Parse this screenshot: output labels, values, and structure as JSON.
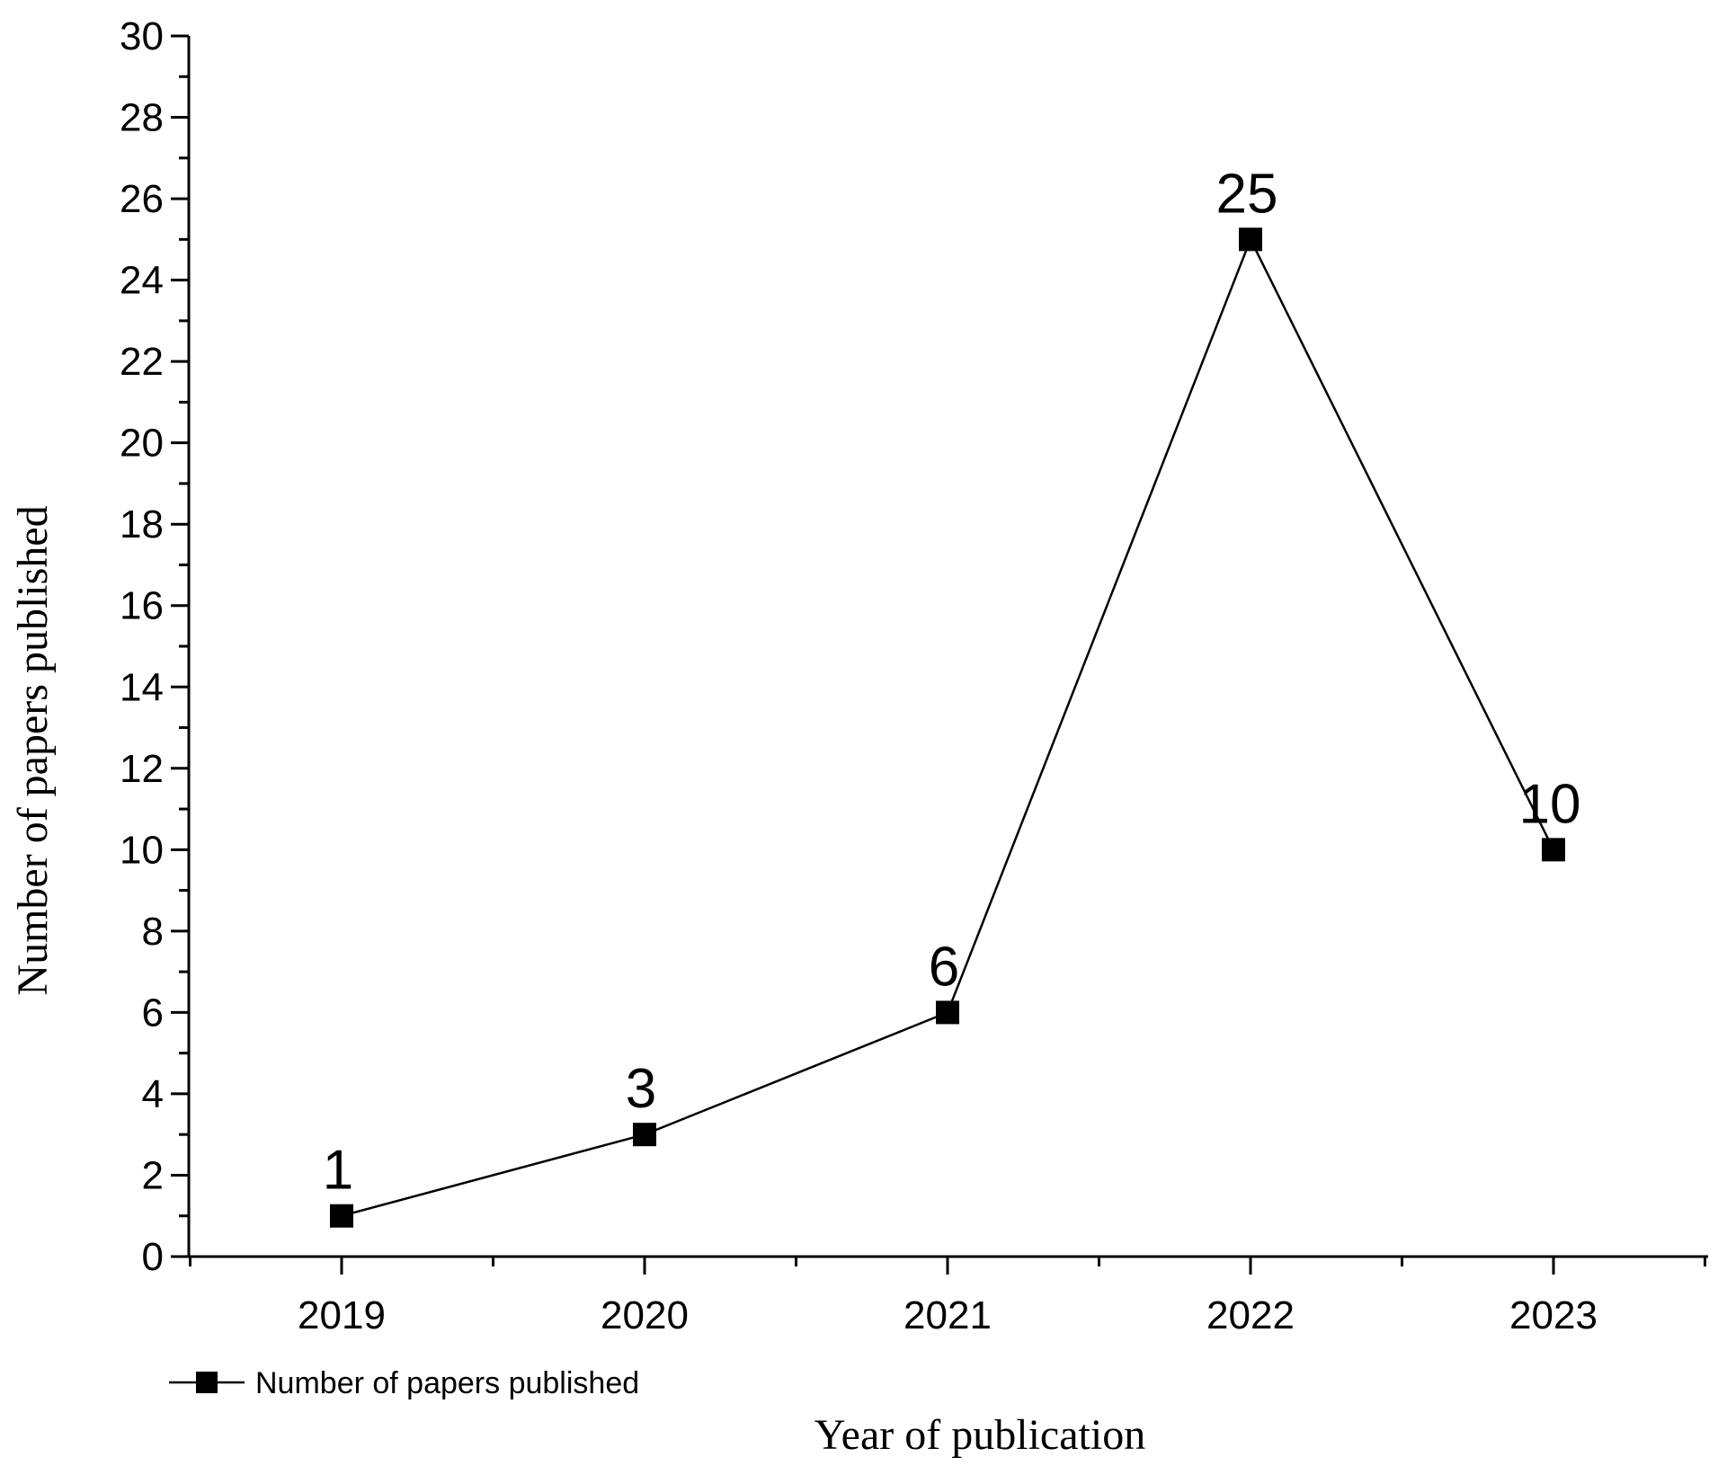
{
  "chart_data": {
    "type": "line",
    "title": "",
    "xlabel": "Year of publication",
    "ylabel": "Number of papers published",
    "categories": [
      "2019",
      "2020",
      "2021",
      "2022",
      "2023"
    ],
    "series": [
      {
        "name": "Number of papers published",
        "values": [
          1,
          3,
          6,
          25,
          10
        ]
      }
    ],
    "data_labels": [
      "1",
      "3",
      "6",
      "25",
      "10"
    ],
    "ylim": [
      0,
      30
    ],
    "y_ticks": [
      0,
      2,
      4,
      6,
      8,
      10,
      12,
      14,
      16,
      18,
      20,
      22,
      24,
      26,
      28,
      30
    ],
    "y_tick_labels": [
      "0",
      "2",
      "4",
      "6",
      "8",
      "10",
      "12",
      "14",
      "16",
      "18",
      "20",
      "22",
      "24",
      "26",
      "28",
      "30"
    ],
    "grid": false,
    "legend_position": "bottom-left",
    "line_color": "#000000",
    "marker": "square"
  }
}
